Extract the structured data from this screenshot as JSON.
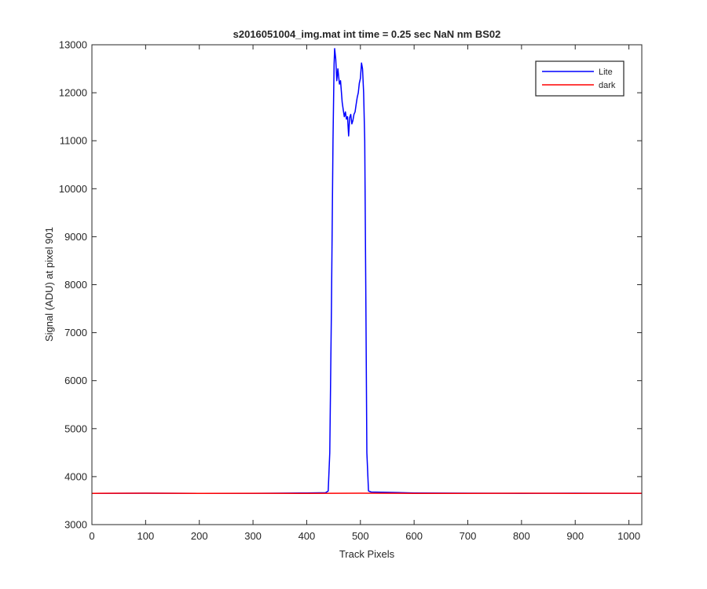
{
  "chart_data": {
    "type": "line",
    "title": "s2016051004_img.mat int time = 0.25 sec  NaN nm BS02",
    "xlabel": "Track Pixels",
    "ylabel": "Signal (ADU) at pixel 901",
    "xlim": [
      0,
      1024
    ],
    "ylim": [
      3000,
      13000
    ],
    "xticks": [
      0,
      100,
      200,
      300,
      400,
      500,
      600,
      700,
      800,
      900,
      1000
    ],
    "yticks": [
      3000,
      4000,
      5000,
      6000,
      7000,
      8000,
      9000,
      10000,
      11000,
      12000,
      13000
    ],
    "grid": false,
    "legend_position": "top-right",
    "series": [
      {
        "name": "Lite",
        "color": "#0000ff",
        "x": [
          0,
          100,
          200,
          300,
          400,
          435,
          440,
          443,
          446,
          449,
          451,
          452,
          454,
          456,
          458,
          461,
          463,
          466,
          468,
          470,
          472,
          474,
          476,
          478,
          480,
          482,
          484,
          486,
          488,
          490,
          492,
          494,
          496,
          498,
          500,
          502,
          504,
          506,
          508,
          510,
          512,
          515,
          520,
          600,
          700,
          800,
          900,
          1024
        ],
        "y": [
          3650,
          3655,
          3650,
          3652,
          3660,
          3665,
          3700,
          4500,
          7500,
          11000,
          12600,
          12920,
          12700,
          12250,
          12500,
          12180,
          12250,
          11800,
          11650,
          11500,
          11600,
          11450,
          11500,
          11100,
          11480,
          11550,
          11350,
          11420,
          11550,
          11600,
          11750,
          11900,
          12000,
          12200,
          12300,
          12620,
          12500,
          12000,
          11000,
          8000,
          4500,
          3700,
          3680,
          3660,
          3655,
          3650,
          3655,
          3650
        ]
      },
      {
        "name": "dark",
        "color": "#ff0000",
        "x": [
          0,
          100,
          200,
          300,
          400,
          500,
          600,
          700,
          800,
          900,
          1024
        ],
        "y": [
          3652,
          3655,
          3650,
          3653,
          3650,
          3655,
          3652,
          3650,
          3654,
          3651,
          3653
        ]
      }
    ]
  }
}
